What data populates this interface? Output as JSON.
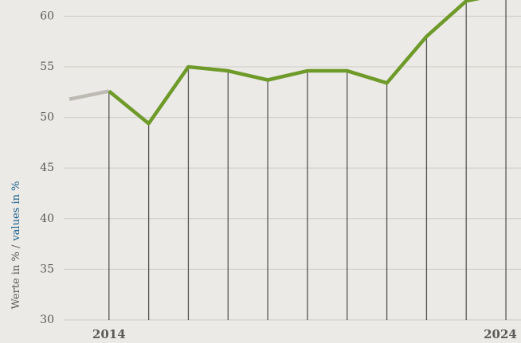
{
  "chart_data": {
    "type": "line",
    "ylabel": "Werte in % /",
    "ylabel_en": "values in %",
    "x": [
      2013,
      2014,
      2015,
      2016,
      2017,
      2018,
      2019,
      2020,
      2021,
      2022,
      2023,
      2024
    ],
    "series": [
      {
        "color": "#bdbab4",
        "values": [
          51.8,
          52.6,
          null,
          null,
          null,
          null,
          null,
          null,
          null,
          null,
          null,
          null
        ]
      },
      {
        "color": "#6e9a2a",
        "values": [
          null,
          52.6,
          49.4,
          55.0,
          54.6,
          53.7,
          54.6,
          54.6,
          53.4,
          58.0,
          61.5,
          62.3
        ]
      }
    ],
    "xlim": [
      2012.86,
      2024.38
    ],
    "xticks": [
      2014,
      2024
    ],
    "ylim": [
      30,
      61.6
    ],
    "yticks": [
      30,
      35,
      40,
      45,
      50,
      55,
      60
    ],
    "grid": true
  }
}
